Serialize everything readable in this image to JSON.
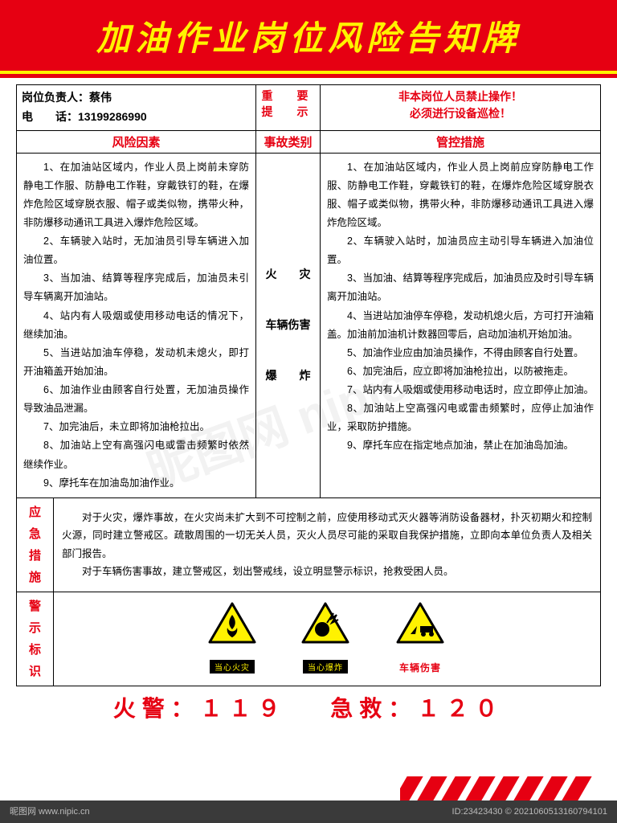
{
  "title": "加油作业岗位风险告知牌",
  "header": {
    "responsible_label": "岗位负责人：",
    "responsible_name": "蔡伟",
    "phone_label": "电　　话：",
    "phone_value": "13199286990",
    "tip_label_l1": "重　要",
    "tip_label_l2": "提　示",
    "tip_text_l1": "非本岗位人员禁止操作！",
    "tip_text_l2": "必须进行设备巡检！"
  },
  "columns": {
    "risk": "风险因素",
    "accident": "事故类别",
    "control": "管控措施"
  },
  "risk_items": [
    "1、在加油站区域内，作业人员上岗前未穿防静电工作服、防静电工作鞋，穿戴铁钉的鞋，在爆炸危险区域穿脱衣服、帽子或类似物，携带火种，非防爆移动通讯工具进入爆炸危险区域。",
    "2、车辆驶入站时，无加油员引导车辆进入加油位置。",
    "3、当加油、结算等程序完成后，加油员未引导车辆离开加油站。",
    "4、站内有人吸烟或使用移动电话的情况下，继续加油。",
    "5、当进站加油车停稳，发动机未熄火，即打开油箱盖开始加油。",
    "6、加油作业由顾客自行处置，无加油员操作导致油品泄漏。",
    "7、加完油后，未立即将加油枪拉出。",
    "8、加油站上空有高强闪电或雷击频繁时依然继续作业。",
    "9、摩托车在加油岛加油作业。"
  ],
  "accident_types": [
    "火　　灾",
    "车辆伤害",
    "爆　　炸"
  ],
  "control_items": [
    "1、在加油站区域内，作业人员上岗前应穿防静电工作服、防静电工作鞋，穿戴铁钉的鞋，在爆炸危险区域穿脱衣服、帽子或类似物，携带火种，非防爆移动通讯工具进入爆炸危险区域。",
    "2、车辆驶入站时，加油员应主动引导车辆进入加油位置。",
    "3、当加油、结算等程序完成后，加油员应及时引导车辆离开加油站。",
    "4、当进站加油停车停稳，发动机熄火后，方可打开油箱盖。加油前加油机计数器回零后，启动加油机开始加油。",
    "5、加油作业应由加油员操作，不得由顾客自行处置。",
    "6、加完油后，应立即将加油枪拉出，以防被拖走。",
    "7、站内有人吸烟或使用移动电话时，应立即停止加油。",
    "8、加油站上空高强闪电或雷击频繁时，应停止加油作业，采取防护措施。",
    "9、摩托车应在指定地点加油，禁止在加油岛加油。"
  ],
  "emergency": {
    "label": "应急措施",
    "text1": "对于火灾，爆炸事故，在火灾尚未扩大到不可控制之前，应使用移动式灭火器等消防设备器材，扑灭初期火和控制火源，同时建立警戒区。疏散周围的一切无关人员，灭火人员尽可能的采取自我保护措施，立即向本单位负责人及相关部门报告。",
    "text2": "对于车辆伤害事故，建立警戒区，划出警戒线，设立明显警示标识，抢救受困人员。"
  },
  "signs": {
    "label": "警示标识",
    "items": [
      {
        "caption": "当心火灾",
        "color": "#000"
      },
      {
        "caption": "当心爆炸",
        "color": "#000"
      },
      {
        "caption": "车辆伤害",
        "color": "#e60012"
      }
    ]
  },
  "hotlines": {
    "fire": "火警：１１９",
    "rescue": "急救：１２０"
  },
  "footer": {
    "site": "昵图网  www.nipic.cn",
    "meta": "ID:23423430 © 2021060513160794101"
  },
  "colors": {
    "red": "#e60012",
    "yellow": "#fff200",
    "black": "#000000"
  }
}
